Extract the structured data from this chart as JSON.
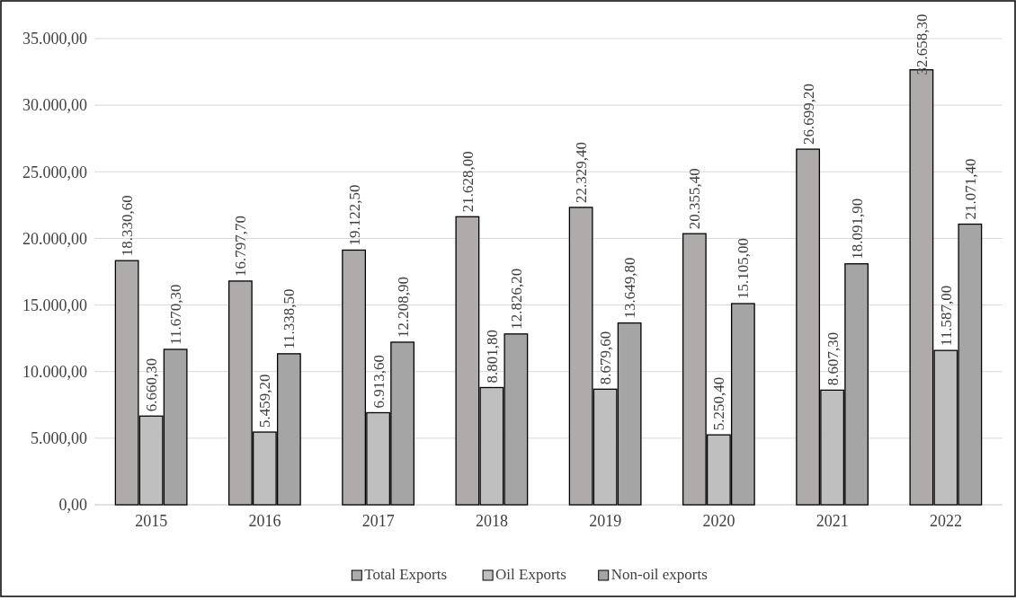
{
  "chart_data": {
    "type": "bar",
    "categories": [
      "2015",
      "2016",
      "2017",
      "2018",
      "2019",
      "2020",
      "2021",
      "2022"
    ],
    "series": [
      {
        "name": "Total Exports",
        "color": "#afabab",
        "values": [
          18330.6,
          16797.7,
          19122.5,
          21628.0,
          22329.4,
          20355.4,
          26699.2,
          32658.3
        ],
        "value_labels": [
          "18.330,60",
          "16.797,70",
          "19.122,50",
          "21.628,00",
          "22.329,40",
          "20.355,40",
          "26.699,20",
          "32.658,30"
        ]
      },
      {
        "name": "Oil Exports",
        "color": "#bfbfbf",
        "values": [
          6660.3,
          5459.2,
          6913.6,
          8801.8,
          8679.6,
          5250.4,
          8607.3,
          11587.0
        ],
        "value_labels": [
          "6.660,30",
          "5.459,20",
          "6.913,60",
          "8.801,80",
          "8.679,60",
          "5.250,40",
          "8.607,30",
          "11.587,00"
        ]
      },
      {
        "name": "Non-oil exports",
        "color": "#a5a5a5",
        "values": [
          11670.3,
          11338.5,
          12208.9,
          12826.2,
          13649.8,
          15105.0,
          18091.9,
          21071.4
        ],
        "value_labels": [
          "11.670,30",
          "11.338,50",
          "12.208,90",
          "12.826,20",
          "13.649,80",
          "15.105,00",
          "18.091,90",
          "21.071,40"
        ]
      }
    ],
    "ylim": [
      0,
      35000
    ],
    "yticks": [
      {
        "value": 0,
        "label": "0,00"
      },
      {
        "value": 5000,
        "label": "5.000,00"
      },
      {
        "value": 10000,
        "label": "10.000,00"
      },
      {
        "value": 15000,
        "label": "15.000,00"
      },
      {
        "value": 20000,
        "label": "20.000,00"
      },
      {
        "value": 25000,
        "label": "25.000,00"
      },
      {
        "value": 30000,
        "label": "30.000,00"
      },
      {
        "value": 35000,
        "label": "35.000,00"
      }
    ],
    "grid": "y",
    "legend": "bottom"
  }
}
